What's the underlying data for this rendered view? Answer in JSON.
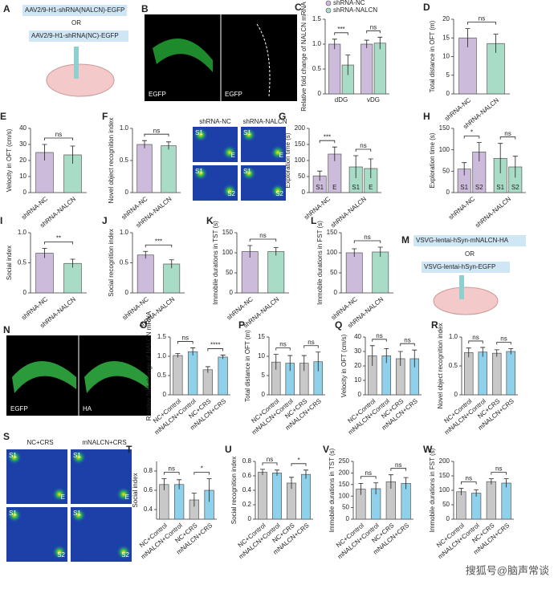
{
  "images": {
    "schematic_a": {
      "panel": "A",
      "line1": "AAV2/9-H1-shRNA(NALCN)-EGFP",
      "or": "OR",
      "line2": "AAV2/9-H1-shRNA(NC)-EGFP"
    },
    "image_b": {
      "panel": "B",
      "left": "EGFP",
      "right": "EGFP"
    },
    "image_f": {
      "heads": [
        "shRNA-NC",
        "shRNA-NALCN"
      ],
      "labels": [
        "S1",
        "E",
        "S1",
        "E",
        "S1",
        "S2",
        "S1",
        "S2"
      ]
    },
    "schematic_m": {
      "panel": "M",
      "line1": "VSVG-lentai-hSyn-mNALCN-HA",
      "or": "OR",
      "line2": "VSVG-lentai-hSyn-EGFP"
    },
    "image_n": {
      "panel": "N",
      "left": "EGFP",
      "right": "HA"
    },
    "image_s": {
      "panel": "S",
      "heads": [
        "NC+CRS",
        "mNALCN+CRS"
      ],
      "labels": [
        "S1",
        "E",
        "S1",
        "E",
        "S1",
        "S2",
        "S1",
        "S2"
      ]
    },
    "watermark": "搜狐号@脑声常谈"
  },
  "chart_data": [
    {
      "type": "grouped",
      "panel": "C",
      "ylabel": "Relative fold change of NALCN mRNA",
      "categories": [
        "dDG",
        "vDG"
      ],
      "series": [
        {
          "name": "shRNA-NC",
          "color": "#cdbbdc",
          "values": [
            1.0,
            1.0
          ],
          "errors": [
            0.1,
            0.08
          ]
        },
        {
          "name": "shRNA-NALCN",
          "color": "#a9dcc6",
          "values": [
            0.58,
            1.02
          ],
          "errors": [
            0.2,
            0.12
          ]
        }
      ],
      "ylim": [
        0,
        1.5
      ],
      "yticks": [
        0,
        0.5,
        {
          "value": 1,
          "label": "1.0"
        },
        1.5
      ],
      "significance": [
        "***",
        "ns"
      ],
      "legend": "top"
    },
    {
      "type": "bar",
      "panel": "D",
      "ylabel": "Total distance in OFT (m)",
      "categories": [
        "shRNA-NC",
        "shRNA-NALCN"
      ],
      "values": [
        15,
        13.5
      ],
      "errors": [
        2.5,
        2.5
      ],
      "colors": [
        "#cdbbdc",
        "#a9dcc6"
      ],
      "ylim": [
        0,
        20
      ],
      "yticks": [
        0,
        5,
        10,
        15,
        20
      ],
      "significance": [
        "ns"
      ]
    },
    {
      "type": "bar",
      "panel": "E",
      "ylabel": "Velocity in OFT (cm/s)",
      "categories": [
        "shRNA-NC",
        "shRNA-NALCN"
      ],
      "values": [
        25,
        23.5
      ],
      "errors": [
        5,
        5.5
      ],
      "colors": [
        "#cdbbdc",
        "#a9dcc6"
      ],
      "ylim": [
        0,
        40
      ],
      "yticks": [
        0,
        10,
        20,
        30,
        40
      ],
      "significance": [
        "ns"
      ]
    },
    {
      "type": "bar",
      "panel": "F",
      "ylabel": "Novel object recognition index",
      "categories": [
        "shRNA-NC",
        "shRNA-NALCN"
      ],
      "values": [
        0.75,
        0.73
      ],
      "errors": [
        0.06,
        0.06
      ],
      "colors": [
        "#cdbbdc",
        "#a9dcc6"
      ],
      "ylim": [
        0,
        1
      ],
      "yticks": [
        0,
        0.5,
        {
          "value": 1,
          "label": "1.0"
        }
      ],
      "significance": [
        "ns"
      ]
    },
    {
      "type": "grouped",
      "panel": "G",
      "ylabel": "Exploration time (s)",
      "categories": [
        "shRNA-NC",
        "shRNA-NALCN"
      ],
      "colors": [
        "#cdbbdc",
        "#a9dcc6"
      ],
      "series": [
        {
          "name": "S1",
          "values": [
            52,
            80
          ],
          "errors": [
            15,
            35
          ]
        },
        {
          "name": "E",
          "values": [
            120,
            75
          ],
          "errors": [
            22,
            30
          ]
        }
      ],
      "ylim": [
        0,
        200
      ],
      "yticks": [
        0,
        50,
        100,
        150,
        200
      ],
      "significance": [
        "***",
        "ns"
      ],
      "bar_labels": "inside"
    },
    {
      "type": "grouped",
      "panel": "H",
      "ylabel": "Exploration time (s)",
      "categories": [
        "shRNA-NC",
        "shRNA-NALCN"
      ],
      "colors": [
        "#cdbbdc",
        "#a9dcc6"
      ],
      "series": [
        {
          "name": "S1",
          "values": [
            55,
            80
          ],
          "errors": [
            15,
            35
          ]
        },
        {
          "name": "S2",
          "values": [
            95,
            60
          ],
          "errors": [
            22,
            25
          ]
        }
      ],
      "ylim": [
        0,
        150
      ],
      "yticks": [
        0,
        50,
        100,
        150
      ],
      "significance": [
        "*",
        "ns"
      ],
      "bar_labels": "inside"
    },
    {
      "type": "bar",
      "panel": "I",
      "ylabel": "Social index",
      "categories": [
        "shRNA-NC",
        "shRNA-NALCN"
      ],
      "values": [
        0.66,
        0.49
      ],
      "errors": [
        0.08,
        0.07
      ],
      "colors": [
        "#cdbbdc",
        "#a9dcc6"
      ],
      "ylim": [
        0,
        1
      ],
      "yticks": [
        0,
        0.5,
        {
          "value": 1,
          "label": "1.0"
        }
      ],
      "significance": [
        "**"
      ]
    },
    {
      "type": "bar",
      "panel": "J",
      "ylabel": "Social recognition index",
      "categories": [
        "shRNA-NC",
        "shRNA-NALCN"
      ],
      "values": [
        0.63,
        0.48
      ],
      "errors": [
        0.06,
        0.07
      ],
      "colors": [
        "#cdbbdc",
        "#a9dcc6"
      ],
      "ylim": [
        0,
        1
      ],
      "yticks": [
        0,
        0.5,
        {
          "value": 1,
          "label": "1.0"
        }
      ],
      "significance": [
        "***"
      ]
    },
    {
      "type": "bar",
      "panel": "K",
      "ylabel": "Immobile durations in TST (s)",
      "categories": [
        "shRNA-NC",
        "shRNA-NALCN"
      ],
      "values": [
        103,
        103
      ],
      "errors": [
        15,
        10
      ],
      "colors": [
        "#cdbbdc",
        "#a9dcc6"
      ],
      "ylim": [
        0,
        150
      ],
      "yticks": [
        0,
        50,
        100,
        150
      ],
      "significance": [
        "ns"
      ]
    },
    {
      "type": "bar",
      "panel": "L",
      "ylabel": "Immobile durations in FST (s)",
      "categories": [
        "shRNA-NC",
        "shRNA-NALCN"
      ],
      "values": [
        100,
        102
      ],
      "errors": [
        10,
        12
      ],
      "colors": [
        "#cdbbdc",
        "#a9dcc6"
      ],
      "ylim": [
        0,
        150
      ],
      "yticks": [
        0,
        50,
        100,
        150
      ],
      "significance": [
        "ns"
      ]
    },
    {
      "type": "bar",
      "panel": "O",
      "ylabel": "Relative fold change of NALCN mRNA",
      "categories": [
        "NC+Control",
        "mNALCN+Control",
        "NC+CRS",
        "mNALCN+CRS"
      ],
      "values": [
        1.02,
        1.12,
        0.65,
        0.98
      ],
      "errors": [
        0.05,
        0.1,
        0.08,
        0.05
      ],
      "colors": [
        "#c8c8c8",
        "#8fd0ea",
        "#c8c8c8",
        "#8fd0ea"
      ],
      "ylim": [
        0,
        1.5
      ],
      "yticks": [
        0,
        0.5,
        {
          "value": 1,
          "label": "1.0"
        },
        1.5
      ],
      "significance": [
        "ns",
        "****"
      ]
    },
    {
      "type": "bar",
      "panel": "P",
      "ylabel": "Total distance in OFT (m)",
      "categories": [
        "NC+Control",
        "mNALCN+Control",
        "NC+CRS",
        "mNALCN+CRS"
      ],
      "values": [
        8.5,
        8.2,
        8.2,
        8.6
      ],
      "errors": [
        2,
        2,
        2,
        2.5
      ],
      "colors": [
        "#c8c8c8",
        "#8fd0ea",
        "#c8c8c8",
        "#8fd0ea"
      ],
      "ylim": [
        0,
        15
      ],
      "yticks": [
        0,
        5,
        10,
        15
      ],
      "significance": [
        "ns",
        "ns"
      ]
    },
    {
      "type": "bar",
      "panel": "Q",
      "ylabel": "Velocity in OFT (cm/s)",
      "categories": [
        "NC+Control",
        "mNALCN+Control",
        "NC+CRS",
        "mNALCN+CRS"
      ],
      "values": [
        27,
        27,
        25,
        25
      ],
      "errors": [
        7,
        5,
        5,
        6
      ],
      "colors": [
        "#c8c8c8",
        "#8fd0ea",
        "#c8c8c8",
        "#8fd0ea"
      ],
      "ylim": [
        0,
        40
      ],
      "yticks": [
        0,
        10,
        20,
        30,
        40
      ],
      "significance": [
        "ns",
        "ns"
      ]
    },
    {
      "type": "bar",
      "panel": "R",
      "ylabel": "Novel object recognition index",
      "categories": [
        "NC+Control",
        "mNALCN+Control",
        "NC+CRS",
        "mNALCN+CRS"
      ],
      "values": [
        0.73,
        0.74,
        0.72,
        0.75
      ],
      "errors": [
        0.08,
        0.08,
        0.06,
        0.05
      ],
      "colors": [
        "#c8c8c8",
        "#8fd0ea",
        "#c8c8c8",
        "#8fd0ea"
      ],
      "ylim": [
        0,
        1
      ],
      "yticks": [
        0,
        0.5,
        {
          "value": 1,
          "label": "1.0"
        }
      ],
      "significance": [
        "ns",
        "ns"
      ]
    },
    {
      "type": "bar",
      "panel": "T",
      "ylabel": "Social index",
      "categories": [
        "NC+Control",
        "mNALCN+Control",
        "NC+CRS",
        "mNALCN+CRS"
      ],
      "values": [
        0.66,
        0.66,
        0.5,
        0.6
      ],
      "errors": [
        0.06,
        0.05,
        0.07,
        0.12
      ],
      "colors": [
        "#c8c8c8",
        "#8fd0ea",
        "#c8c8c8",
        "#8fd0ea"
      ],
      "ylim": [
        0.3,
        0.9
      ],
      "yticks": [
        0.4,
        0.6,
        0.8
      ],
      "significance": [
        "ns",
        "*"
      ]
    },
    {
      "type": "bar",
      "panel": "U",
      "ylabel": "Social recognition index",
      "categories": [
        "NC+Control",
        "mNALCN+Control",
        "NC+CRS",
        "mNALCN+CRS"
      ],
      "values": [
        0.65,
        0.64,
        0.5,
        0.62
      ],
      "errors": [
        0.04,
        0.04,
        0.08,
        0.06
      ],
      "colors": [
        "#c8c8c8",
        "#8fd0ea",
        "#c8c8c8",
        "#8fd0ea"
      ],
      "ylim": [
        0,
        0.8
      ],
      "yticks": [
        0,
        0.2,
        0.4,
        0.6,
        0.8
      ],
      "significance": [
        "ns",
        "*"
      ]
    },
    {
      "type": "bar",
      "panel": "V",
      "ylabel": "Immobile durations in TST (s)",
      "categories": [
        "NC+Control",
        "mNALCN+Control",
        "NC+CRS",
        "mNALCN+CRS"
      ],
      "values": [
        130,
        132,
        162,
        155
      ],
      "errors": [
        25,
        25,
        30,
        25
      ],
      "colors": [
        "#c8c8c8",
        "#8fd0ea",
        "#c8c8c8",
        "#8fd0ea"
      ],
      "ylim": [
        0,
        250
      ],
      "yticks": [
        0,
        50,
        100,
        150,
        200,
        250
      ],
      "significance": [
        "ns",
        "ns"
      ]
    },
    {
      "type": "bar",
      "panel": "W",
      "ylabel": "Immobile durations in FST (s)",
      "categories": [
        "NC+Control",
        "mNALCN+Control",
        "NC+CRS",
        "mNALCN+CRS"
      ],
      "values": [
        95,
        90,
        130,
        125
      ],
      "errors": [
        12,
        12,
        10,
        15
      ],
      "colors": [
        "#c8c8c8",
        "#8fd0ea",
        "#c8c8c8",
        "#8fd0ea"
      ],
      "ylim": [
        0,
        200
      ],
      "yticks": [
        0,
        50,
        100,
        150,
        200
      ],
      "significance": [
        "ns",
        "ns"
      ]
    }
  ]
}
